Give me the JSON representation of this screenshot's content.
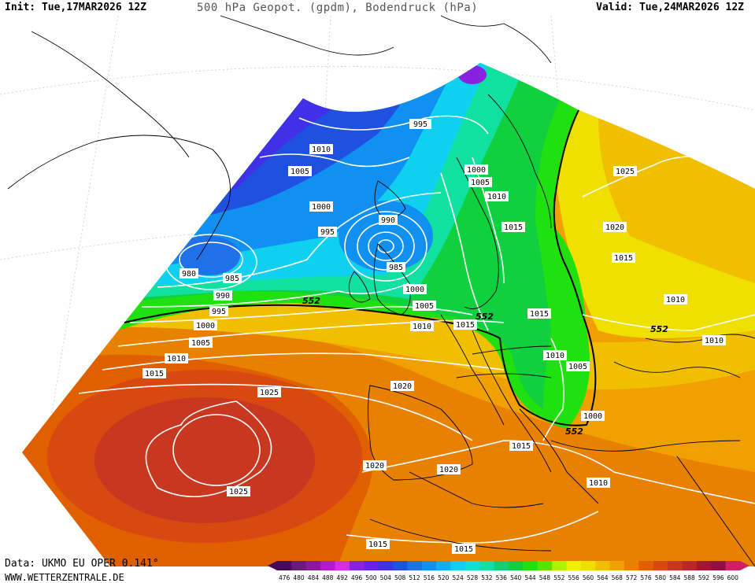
{
  "header": {
    "init": "Init: Tue,17MAR2026 12Z",
    "title": "500 hPa Geopot. (gpdm), Bodendruck (hPa)",
    "valid": "Valid: Tue,24MAR2026 12Z"
  },
  "footer": {
    "source": "Data: UKMO EU OPER 0.141°",
    "website": "WWW.WETTERZENTRALE.DE"
  },
  "legend": {
    "values": [
      "476",
      "480",
      "484",
      "488",
      "492",
      "496",
      "500",
      "504",
      "508",
      "512",
      "516",
      "520",
      "524",
      "528",
      "532",
      "536",
      "540",
      "544",
      "548",
      "552",
      "556",
      "560",
      "564",
      "568",
      "572",
      "576",
      "580",
      "584",
      "588",
      "592",
      "596",
      "600"
    ],
    "colors": [
      "#4a0a5a",
      "#6a1a7a",
      "#8a1a9a",
      "#b020c0",
      "#d030e0",
      "#8a20e0",
      "#6a20f0",
      "#4030e8",
      "#2050e0",
      "#2070e8",
      "#1090f0",
      "#10b0f0",
      "#10d0f0",
      "#10e0d0",
      "#10e0a0",
      "#10d070",
      "#10d040",
      "#20e010",
      "#60e000",
      "#b0f000",
      "#f0f000",
      "#f0e000",
      "#f0c000",
      "#f0a000",
      "#e88000",
      "#e06000",
      "#d84810",
      "#c83820",
      "#b82828",
      "#a01830",
      "#901040",
      "#d02060"
    ]
  },
  "map": {
    "contour_552_label": "552",
    "pressure_labels": [
      {
        "id": "p995a",
        "text": "995"
      },
      {
        "id": "p1010a",
        "text": "1010"
      },
      {
        "id": "p1005a",
        "text": "1005"
      },
      {
        "id": "p1000a",
        "text": "1000"
      },
      {
        "id": "p990a",
        "text": "990"
      },
      {
        "id": "p995b",
        "text": "995"
      },
      {
        "id": "p985a",
        "text": "985"
      },
      {
        "id": "p980",
        "text": "980"
      },
      {
        "id": "p985b",
        "text": "985"
      },
      {
        "id": "p990b",
        "text": "990"
      },
      {
        "id": "p995c",
        "text": "995"
      },
      {
        "id": "p1000b",
        "text": "1000"
      },
      {
        "id": "p1005b",
        "text": "1005"
      },
      {
        "id": "p1010b",
        "text": "1010"
      },
      {
        "id": "p1015a",
        "text": "1015"
      },
      {
        "id": "p1000c",
        "text": "1000"
      },
      {
        "id": "p1005c",
        "text": "1005"
      },
      {
        "id": "p1000d",
        "text": "1000"
      },
      {
        "id": "p1005d",
        "text": "1005"
      },
      {
        "id": "p1010c",
        "text": "1010"
      },
      {
        "id": "p1010d",
        "text": "1010"
      },
      {
        "id": "p1015b",
        "text": "1015"
      },
      {
        "id": "p1015c",
        "text": "1015"
      },
      {
        "id": "p1025a",
        "text": "1025"
      },
      {
        "id": "p1020a",
        "text": "1020"
      },
      {
        "id": "p1015d",
        "text": "1015"
      },
      {
        "id": "p1010e",
        "text": "1010"
      },
      {
        "id": "p1010f",
        "text": "1010"
      },
      {
        "id": "p1015e",
        "text": "1015"
      },
      {
        "id": "p1010g",
        "text": "1010"
      },
      {
        "id": "p1005e",
        "text": "1005"
      },
      {
        "id": "p1000e",
        "text": "1000"
      },
      {
        "id": "p1020b",
        "text": "1020"
      },
      {
        "id": "p1025b",
        "text": "1025"
      },
      {
        "id": "p1025c",
        "text": "1025"
      },
      {
        "id": "p1020c",
        "text": "1020"
      },
      {
        "id": "p1020d",
        "text": "1020"
      },
      {
        "id": "p1015f",
        "text": "1015"
      },
      {
        "id": "p1010h",
        "text": "1010"
      },
      {
        "id": "p1015g",
        "text": "1015"
      },
      {
        "id": "p1015h",
        "text": "1015"
      }
    ]
  }
}
